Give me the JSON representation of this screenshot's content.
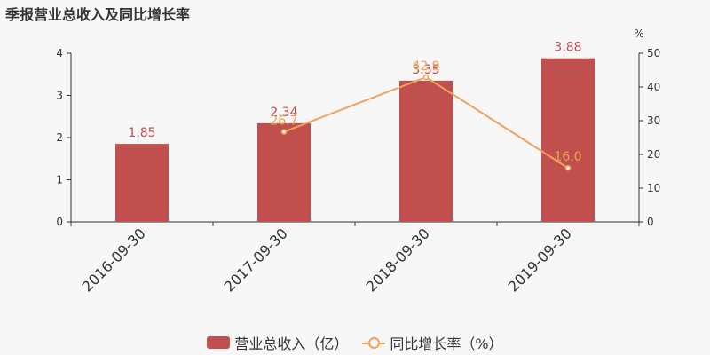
{
  "title": "季报营业总收入及同比增长率",
  "colors": {
    "bar": "#c0504d",
    "line": "#f5a05a",
    "barLabel": "#c0504d",
    "lineLabel": "#f0a050"
  },
  "legend": {
    "bar": "营业总收入（亿）",
    "line": "同比增长率（%）"
  },
  "chart_data": {
    "type": "bar",
    "categories": [
      "2016-09-30",
      "2017-09-30",
      "2018-09-30",
      "2019-09-30"
    ],
    "series": [
      {
        "name": "营业总收入（亿）",
        "type": "bar",
        "axis": "left",
        "values": [
          1.85,
          2.34,
          3.35,
          3.88
        ],
        "labels": [
          "1.85",
          "2.34",
          "3.35",
          "3.88"
        ]
      },
      {
        "name": "同比增长率（%）",
        "type": "line",
        "axis": "right",
        "x": [
          "2017-09-30",
          "2018-09-30",
          "2019-09-30"
        ],
        "values": [
          26.7,
          42.9,
          16.0
        ],
        "labels": [
          "26.7",
          "42.9",
          "16.0"
        ]
      }
    ],
    "yAxisLeft": {
      "ylim": [
        0,
        4
      ],
      "ticks": [
        0,
        1,
        2,
        3,
        4
      ]
    },
    "yAxisRight": {
      "ylim": [
        0,
        50
      ],
      "ticks": [
        0,
        10,
        20,
        30,
        40,
        50
      ],
      "unit": "%"
    },
    "legend_position": "bottom",
    "grid": false
  }
}
